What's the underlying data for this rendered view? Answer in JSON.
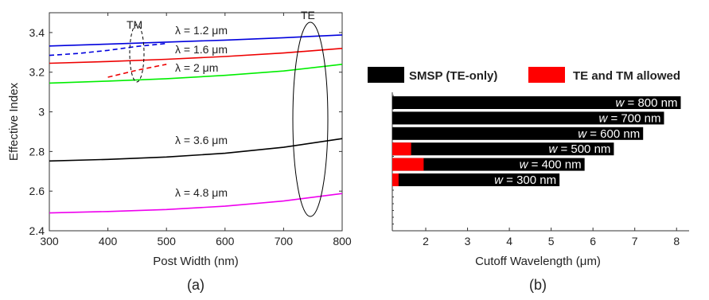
{
  "chart_data": [
    {
      "panel": "(a)",
      "type": "line",
      "xlabel": "Post Width (nm)",
      "ylabel": "Effective Index",
      "xlim": [
        300,
        800
      ],
      "ylim": [
        2.4,
        3.5
      ],
      "xticks": [
        300,
        400,
        500,
        600,
        700,
        800
      ],
      "yticks": [
        2.4,
        2.6,
        2.8,
        3,
        3.2,
        3.4
      ],
      "series": [
        {
          "name": "λ = 1.2 μm",
          "mode": "TE",
          "color": "#0000dd",
          "style": "solid",
          "x": [
            300,
            400,
            500,
            600,
            700,
            800
          ],
          "y": [
            3.332,
            3.342,
            3.352,
            3.362,
            3.374,
            3.388
          ]
        },
        {
          "name": "λ = 1.6 μm",
          "mode": "TE",
          "color": "#ee0000",
          "style": "solid",
          "x": [
            300,
            400,
            500,
            600,
            700,
            800
          ],
          "y": [
            3.245,
            3.254,
            3.265,
            3.279,
            3.297,
            3.32
          ]
        },
        {
          "name": "λ = 2 μm",
          "mode": "TE",
          "color": "#00ee00",
          "style": "solid",
          "x": [
            300,
            400,
            500,
            600,
            700,
            800
          ],
          "y": [
            3.145,
            3.155,
            3.167,
            3.184,
            3.206,
            3.24
          ]
        },
        {
          "name": "λ = 3.6 μm",
          "mode": "TE",
          "color": "#000000",
          "style": "solid",
          "x": [
            300,
            400,
            500,
            600,
            700,
            800
          ],
          "y": [
            2.752,
            2.76,
            2.772,
            2.791,
            2.821,
            2.865
          ]
        },
        {
          "name": "λ = 4.8 μm",
          "mode": "TE",
          "color": "#ee00ee",
          "style": "solid",
          "x": [
            300,
            400,
            500,
            600,
            700,
            800
          ],
          "y": [
            2.49,
            2.497,
            2.507,
            2.524,
            2.55,
            2.588
          ]
        },
        {
          "name": "λ = 1.2 μm",
          "mode": "TM",
          "color": "#0000dd",
          "style": "dashed",
          "x": [
            300,
            350,
            400,
            450,
            500
          ],
          "y": [
            3.285,
            3.295,
            3.31,
            3.33,
            3.345
          ]
        },
        {
          "name": "λ = 1.6 μm",
          "mode": "TM",
          "color": "#ee0000",
          "style": "dashed",
          "x": [
            400,
            450,
            500
          ],
          "y": [
            3.175,
            3.21,
            3.24
          ]
        }
      ],
      "annotations": {
        "tm": "TM",
        "te": "TE",
        "l12": "λ = 1.2 μm",
        "l16": "λ = 1.6 μm",
        "l2": "λ = 2 μm",
        "l36": "λ = 3.6 μm",
        "l48": "λ = 4.8 μm"
      },
      "caption": "(a)"
    },
    {
      "panel": "(b)",
      "type": "bar",
      "orientation": "horizontal",
      "xlabel": "Cutoff Wavelength (μm)",
      "xlim": [
        1.2,
        8.3
      ],
      "xticks": [
        2,
        3,
        4,
        5,
        6,
        7,
        8
      ],
      "legend": [
        {
          "name": "SMSP (TE-only)",
          "color": "#000000"
        },
        {
          "name": "TE and TM allowed",
          "color": "#ff0000"
        }
      ],
      "legend_position": "top",
      "bars": [
        {
          "w_prefix": "w",
          "label": " = 800 nm",
          "smsp_end": 8.1,
          "te_tm_end": null
        },
        {
          "w_prefix": "w",
          "label": " = 700 nm",
          "smsp_end": 7.7,
          "te_tm_end": null
        },
        {
          "w_prefix": "w",
          "label": " = 600 nm",
          "smsp_end": 7.2,
          "te_tm_end": null
        },
        {
          "w_prefix": "w",
          "label": " = 500 nm",
          "smsp_end": 6.5,
          "te_tm_end": 1.65
        },
        {
          "w_prefix": "w",
          "label": " = 400 nm",
          "smsp_end": 5.8,
          "te_tm_end": 1.95
        },
        {
          "w_prefix": "w",
          "label": " = 300 nm",
          "smsp_end": 5.2,
          "te_tm_end": 1.35
        }
      ],
      "caption": "(b)"
    }
  ]
}
